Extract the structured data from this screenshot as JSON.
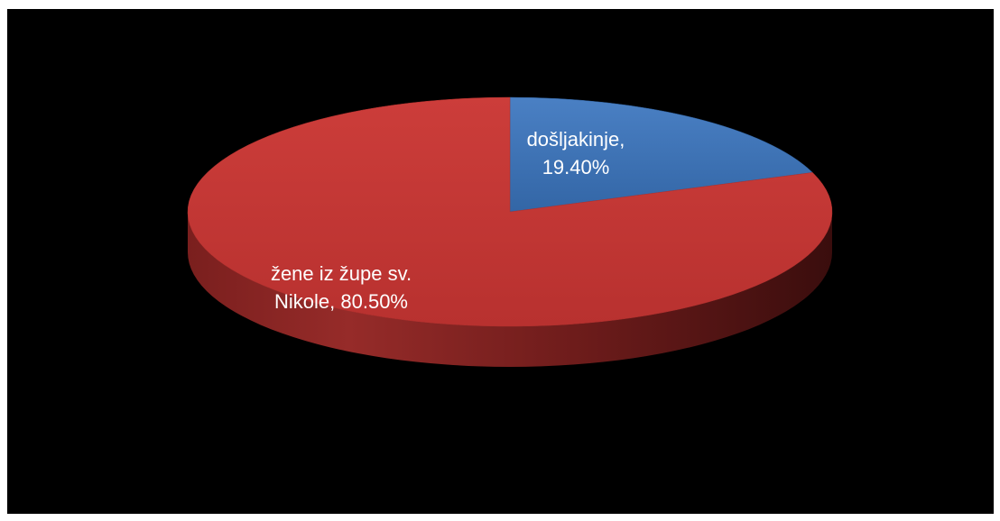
{
  "chart_data": {
    "type": "pie",
    "style": "3d",
    "slices": [
      {
        "label": "došljakinje",
        "value": 19.4,
        "display": "došljakinje, 19.40%",
        "color": "#3f73b8"
      },
      {
        "label": "žene iz župe sv. Nikole",
        "value": 80.5,
        "display": "žene iz župe sv. Nikole, 80.50%",
        "color": "#c63a37"
      }
    ],
    "legend": "none",
    "background": "#000000"
  }
}
